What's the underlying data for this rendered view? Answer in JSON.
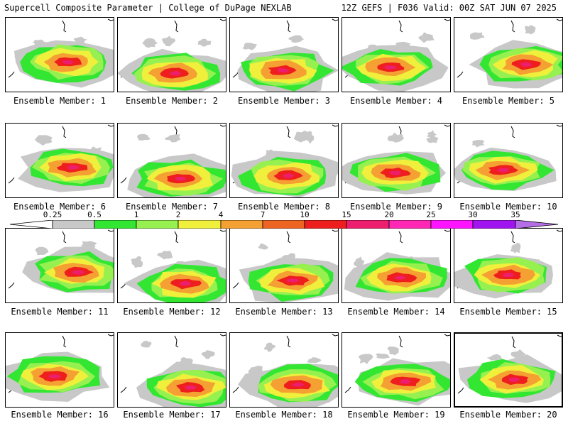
{
  "header": {
    "title": "Supercell Composite Parameter | College of DuPage NEXLAB",
    "run_info": "12Z GEFS | F036 Valid: 00Z SAT JUN 07 2025"
  },
  "chart_data": {
    "type": "heatmap",
    "title": "Supercell Composite Parameter",
    "panel_labels": [
      "Ensemble Member: 1",
      "Ensemble Member: 2",
      "Ensemble Member: 3",
      "Ensemble Member: 4",
      "Ensemble Member: 5",
      "Ensemble Member: 6",
      "Ensemble Member: 7",
      "Ensemble Member: 8",
      "Ensemble Member: 9",
      "Ensemble Member: 10",
      "Ensemble Member: 11",
      "Ensemble Member: 12",
      "Ensemble Member: 13",
      "Ensemble Member: 14",
      "Ensemble Member: 15",
      "Ensemble Member: 16",
      "Ensemble Member: 17",
      "Ensemble Member: 18",
      "Ensemble Member: 19",
      "Ensemble Member: 20"
    ],
    "highlighted_panel": 20,
    "grid": false,
    "legend_placement": "between second and third rows",
    "colorbar": {
      "tick_labels": [
        "0.25",
        "0.5",
        "1",
        "2",
        "4",
        "7",
        "10",
        "15",
        "20",
        "25",
        "30",
        "35"
      ],
      "colors": [
        "#ffffff",
        "#c8c8c8",
        "#32e632",
        "#96f050",
        "#f0f03c",
        "#f5a032",
        "#ee6423",
        "#ee1e1e",
        "#ee1e6e",
        "#ff28b4",
        "#ff14ff",
        "#a014f0",
        "#b46ee6",
        "#32e6f0"
      ]
    }
  }
}
